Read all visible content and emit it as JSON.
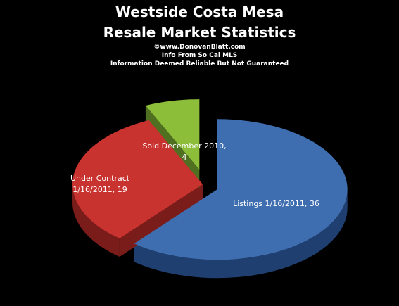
{
  "header": {
    "title_line1": "Westside Costa Mesa",
    "title_line2": "Resale Market Statistics",
    "subtitle_lines": [
      "©www.DonovanBlatt.com",
      "Info  From So Cal MLS",
      "Information Deemed Reliable But Not Guaranteed"
    ]
  },
  "chart_data": {
    "type": "pie",
    "title": "Westside Costa Mesa Resale Market Statistics",
    "slices": [
      {
        "label": "Listings 1/16/2011",
        "value": 36,
        "color": "#3e6eb0",
        "side_color": "#1f3f70",
        "exploded": true
      },
      {
        "label": "Under Contract 1/16/2011",
        "value": 19,
        "color": "#c8322f",
        "side_color": "#7a1c1a",
        "exploded": false
      },
      {
        "label": "Sold December  2010",
        "value": 4,
        "color": "#8cbe3a",
        "side_color": "#4f7020",
        "exploded": true
      }
    ],
    "data_labels": [
      {
        "text_line1": "Sold December  2010,",
        "text_line2": "4"
      },
      {
        "text_line1": "Under Contract",
        "text_line2": "1/16/2011, 19"
      },
      {
        "text_line1": "Listings 1/16/2011, 36",
        "text_line2": ""
      }
    ],
    "legend": "none"
  }
}
